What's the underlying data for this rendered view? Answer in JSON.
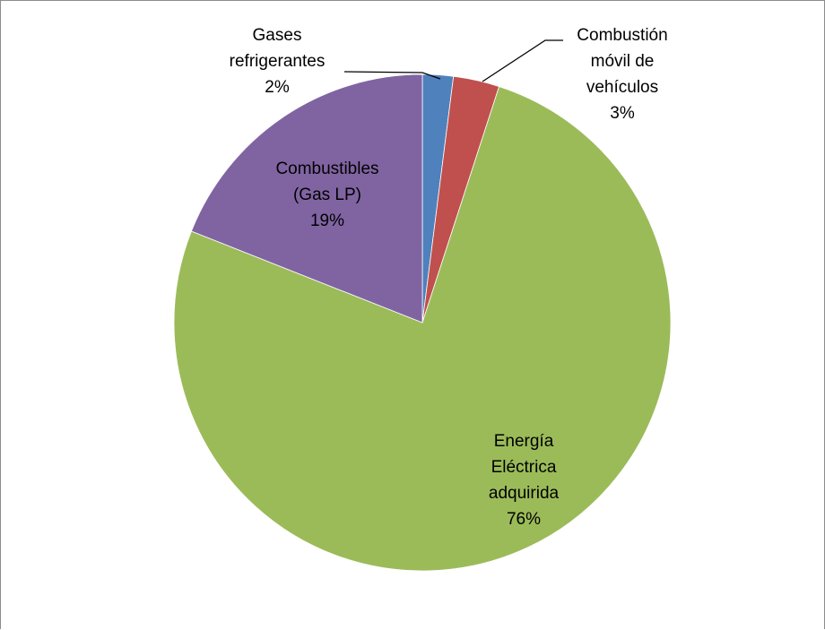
{
  "chart_data": {
    "type": "pie",
    "slices": [
      {
        "label_lines": [
          "Gases",
          "refrigerantes"
        ],
        "value": 2,
        "value_label": "2%",
        "color": "#4F81BD"
      },
      {
        "label_lines": [
          "Combustión",
          "móvil de",
          "vehículos"
        ],
        "value": 3,
        "value_label": "3%",
        "color": "#C0504D"
      },
      {
        "label_lines": [
          "Energía",
          "Eléctrica",
          "adquirida"
        ],
        "value": 76,
        "value_label": "76%",
        "color": "#9BBB59"
      },
      {
        "label_lines": [
          "Combustibles",
          "(Gas LP)"
        ],
        "value": 19,
        "value_label": "19%",
        "color": "#8064A2"
      }
    ],
    "start_angle_deg": 0,
    "direction": "clockwise",
    "legend": "none"
  }
}
